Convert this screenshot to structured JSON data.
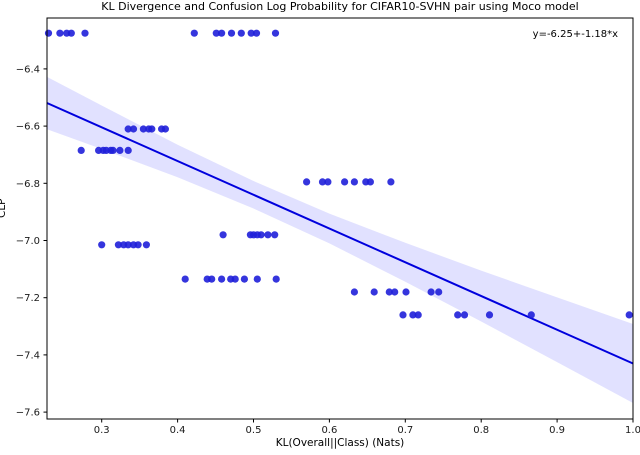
{
  "chart_data": {
    "type": "scatter",
    "title": "KL Divergence and Confusion Log Probability for CIFAR10-SVHN pair using Moco model",
    "xlabel": "KL(Overall||Class) (Nats)",
    "ylabel": "CLP",
    "annotation": "y=-6.25+-1.18*x",
    "xlim": [
      0.228,
      1.0
    ],
    "ylim": [
      -7.624,
      -6.222
    ],
    "xticks": [
      0.3,
      0.4,
      0.5,
      0.6,
      0.7,
      0.8,
      0.9,
      1.0
    ],
    "yticks": [
      -6.4,
      -6.6,
      -6.8,
      -7.0,
      -7.2,
      -7.4,
      -7.6
    ],
    "grid": false,
    "legend": "none",
    "regression": {
      "intercept": -6.25,
      "slope": -1.18,
      "x_start": 0.228,
      "x_end": 1.0
    },
    "ci_band": [
      {
        "x": 0.228,
        "lo": -6.611,
        "hi": -6.428
      },
      {
        "x": 0.3,
        "lo": -6.68,
        "hi": -6.528
      },
      {
        "x": 0.4,
        "lo": -6.779,
        "hi": -6.665
      },
      {
        "x": 0.5,
        "lo": -6.888,
        "hi": -6.792
      },
      {
        "x": 0.6,
        "lo": -7.01,
        "hi": -6.906
      },
      {
        "x": 0.7,
        "lo": -7.144,
        "hi": -7.008
      },
      {
        "x": 0.8,
        "lo": -7.283,
        "hi": -7.105
      },
      {
        "x": 0.9,
        "lo": -7.425,
        "hi": -7.199
      },
      {
        "x": 1.0,
        "lo": -7.568,
        "hi": -7.292
      }
    ],
    "groups": [
      {
        "clp": -6.275,
        "kl": [
          0.23,
          0.245,
          0.254,
          0.26,
          0.278,
          0.422,
          0.451,
          0.458,
          0.471,
          0.484,
          0.497,
          0.504,
          0.529
        ]
      },
      {
        "clp": -6.61,
        "kl": [
          0.335,
          0.342,
          0.355,
          0.362,
          0.366,
          0.379,
          0.384
        ]
      },
      {
        "clp": -6.685,
        "kl": [
          0.273,
          0.296,
          0.302,
          0.306,
          0.312,
          0.315,
          0.324,
          0.335
        ]
      },
      {
        "clp": -6.795,
        "kl": [
          0.57,
          0.591,
          0.598,
          0.62,
          0.633,
          0.648,
          0.654,
          0.681
        ]
      },
      {
        "clp": -6.98,
        "kl": [
          0.46,
          0.496,
          0.5,
          0.505,
          0.51,
          0.519,
          0.528
        ]
      },
      {
        "clp": -7.015,
        "kl": [
          0.3,
          0.322,
          0.329,
          0.335,
          0.342,
          0.348,
          0.359
        ]
      },
      {
        "clp": -7.135,
        "kl": [
          0.41,
          0.439,
          0.445,
          0.458,
          0.47,
          0.476,
          0.488,
          0.505,
          0.53
        ]
      },
      {
        "clp": -7.18,
        "kl": [
          0.633,
          0.659,
          0.679,
          0.686,
          0.701,
          0.734,
          0.744
        ]
      },
      {
        "clp": -7.26,
        "kl": [
          0.697,
          0.71,
          0.717,
          0.769,
          0.778,
          0.811,
          0.866,
          0.995
        ]
      }
    ],
    "colors": {
      "point": "#1f1fd9",
      "line": "#0000dd",
      "band": "rgba(90,90,255,0.18)",
      "spine": "#000000",
      "text": "#000000"
    }
  }
}
